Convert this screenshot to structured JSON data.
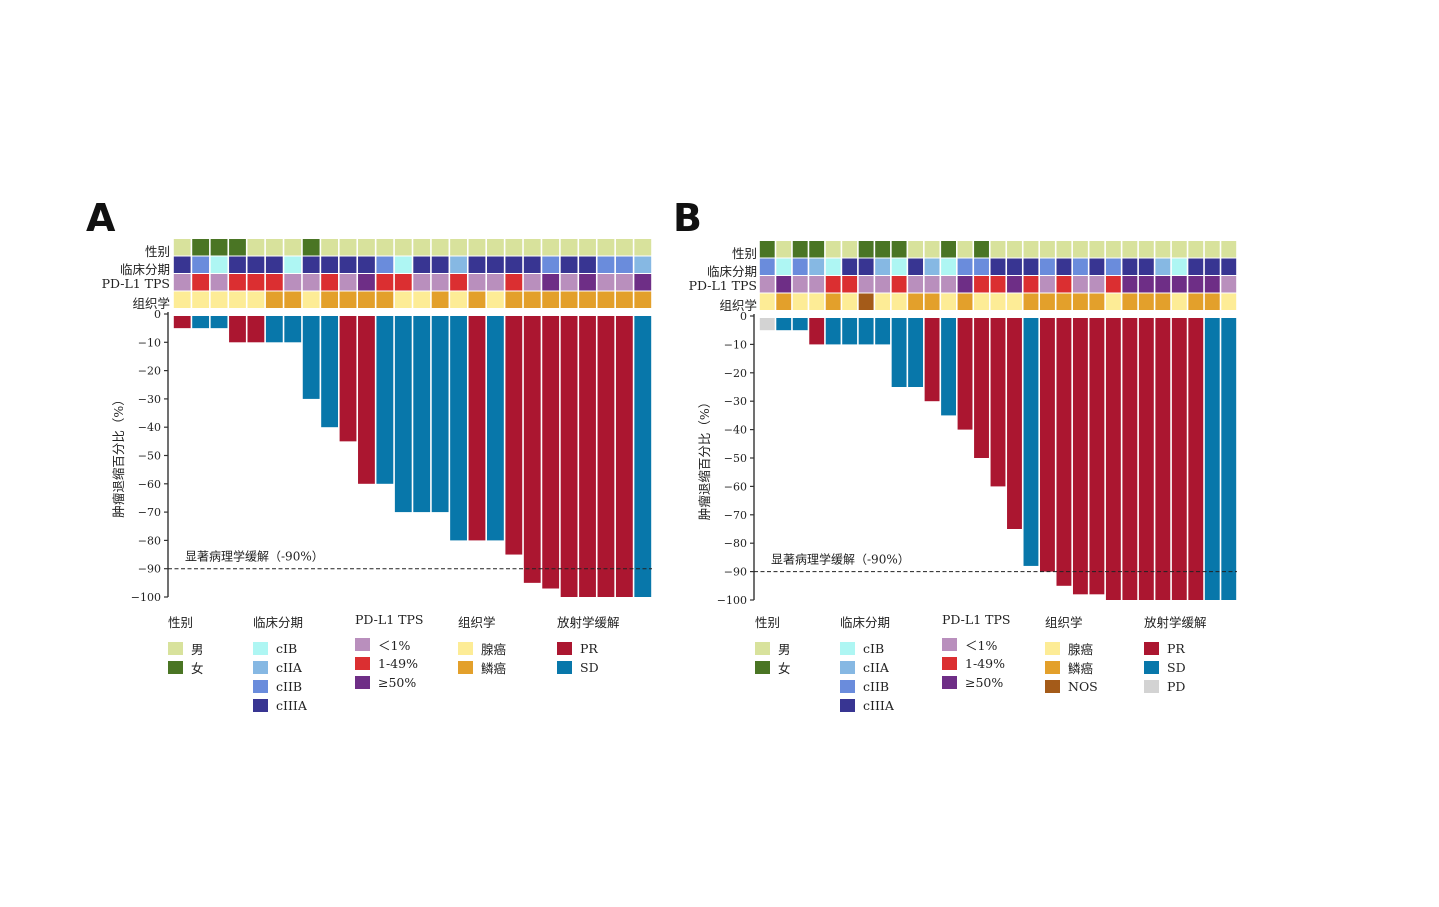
{
  "colors": {
    "sex": {
      "男": "#d8e29c",
      "女": "#4a7524"
    },
    "stage": {
      "cIB": "#aef6f3",
      "cIIA": "#86b8e3",
      "cIIB": "#6a8cdc",
      "cIIIA": "#383592"
    },
    "pdl1": {
      "<1%": "#b98fbd",
      "1-49%": "#db2f31",
      "≥50%": "#6e2e86"
    },
    "histology": {
      "腺癌": "#fdec96",
      "鳞癌": "#e3a02b",
      "NOS": "#a45b19"
    },
    "response": {
      "PR": "#ab1630",
      "SD": "#0877aa",
      "PD": "#d3d3d3"
    }
  },
  "track_labels": [
    "性别",
    "临床分期",
    "PD-L1 TPS",
    "组织学"
  ],
  "legend_titles": [
    "性别",
    "临床分期",
    "PD-L1 TPS",
    "组织学",
    "放射学缓解"
  ],
  "chart_data": [
    {
      "type": "bar",
      "panel": "A",
      "title": "A",
      "ylabel": "肿瘤退缩百分比（%）",
      "ylim": [
        -100,
        0
      ],
      "yticks": [
        0,
        -10,
        -20,
        -30,
        -40,
        -50,
        -60,
        -70,
        -80,
        -90,
        -100
      ],
      "reference_line": {
        "value": -90,
        "label": "显著病理学缓解（-90%）",
        "style": "dashed"
      },
      "values": [
        -5,
        -5,
        -5,
        -10,
        -10,
        -10,
        -10,
        -30,
        -40,
        -45,
        -60,
        -60,
        -70,
        -70,
        -70,
        -80,
        -80,
        -80,
        -85,
        -95,
        -97,
        -100,
        -100,
        -100,
        -100,
        -100
      ],
      "response": [
        "PR",
        "SD",
        "SD",
        "PR",
        "PR",
        "SD",
        "SD",
        "SD",
        "SD",
        "PR",
        "PR",
        "SD",
        "SD",
        "SD",
        "SD",
        "SD",
        "PR",
        "SD",
        "PR",
        "PR",
        "PR",
        "PR",
        "PR",
        "PR",
        "PR",
        "SD"
      ],
      "sex": [
        "男",
        "女",
        "女",
        "女",
        "男",
        "男",
        "男",
        "女",
        "男",
        "男",
        "男",
        "男",
        "男",
        "男",
        "男",
        "男",
        "男",
        "男",
        "男",
        "男",
        "男",
        "男",
        "男",
        "男",
        "男",
        "男"
      ],
      "stage": [
        "cIIIA",
        "cIIB",
        "cIB",
        "cIIIA",
        "cIIIA",
        "cIIIA",
        "cIB",
        "cIIIA",
        "cIIIA",
        "cIIIA",
        "cIIIA",
        "cIIB",
        "cIB",
        "cIIIA",
        "cIIIA",
        "cIIA",
        "cIIIA",
        "cIIIA",
        "cIIIA",
        "cIIIA",
        "cIIB",
        "cIIIA",
        "cIIIA",
        "cIIB",
        "cIIB",
        "cIIA"
      ],
      "pdl1": [
        "<1%",
        "1-49%",
        "<1%",
        "1-49%",
        "1-49%",
        "1-49%",
        "<1%",
        "<1%",
        "1-49%",
        "<1%",
        "≥50%",
        "1-49%",
        "1-49%",
        "<1%",
        "<1%",
        "1-49%",
        "<1%",
        "<1%",
        "1-49%",
        "<1%",
        "≥50%",
        "<1%",
        "≥50%",
        "<1%",
        "<1%",
        "≥50%"
      ],
      "histology": [
        "腺癌",
        "腺癌",
        "腺癌",
        "腺癌",
        "腺癌",
        "鳞癌",
        "鳞癌",
        "腺癌",
        "鳞癌",
        "鳞癌",
        "鳞癌",
        "鳞癌",
        "腺癌",
        "腺癌",
        "鳞癌",
        "腺癌",
        "鳞癌",
        "腺癌",
        "鳞癌",
        "鳞癌",
        "鳞癌",
        "鳞癌",
        "鳞癌",
        "鳞癌",
        "鳞癌",
        "鳞癌"
      ],
      "legend": {
        "sex": [
          "男",
          "女"
        ],
        "stage": [
          "cIB",
          "cIIA",
          "cIIB",
          "cIIIA"
        ],
        "pdl1": [
          "<1%",
          "1-49%",
          "≥50%"
        ],
        "histology": [
          "腺癌",
          "鳞癌"
        ],
        "response": [
          "PR",
          "SD"
        ]
      },
      "legend_placement": "bottom"
    },
    {
      "type": "bar",
      "panel": "B",
      "title": "B",
      "ylabel": "肿瘤退缩百分比（%）",
      "ylim": [
        -100,
        0
      ],
      "yticks": [
        0,
        -10,
        -20,
        -30,
        -40,
        -50,
        -60,
        -70,
        -80,
        -90,
        -100
      ],
      "reference_line": {
        "value": -90,
        "label": "显著病理学缓解（-90%）",
        "style": "dashed"
      },
      "values": [
        -5,
        -5,
        -5,
        -10,
        -10,
        -10,
        -10,
        -10,
        -25,
        -25,
        -30,
        -35,
        -40,
        -50,
        -60,
        -75,
        -88,
        -90,
        -95,
        -98,
        -98,
        -100,
        -100,
        -100,
        -100,
        -100,
        -100,
        -100,
        -100
      ],
      "response": [
        "PD",
        "SD",
        "SD",
        "PR",
        "SD",
        "SD",
        "SD",
        "SD",
        "SD",
        "SD",
        "PR",
        "SD",
        "PR",
        "PR",
        "PR",
        "PR",
        "SD",
        "PR",
        "PR",
        "PR",
        "PR",
        "PR",
        "PR",
        "PR",
        "PR",
        "PR",
        "PR",
        "SD",
        "SD"
      ],
      "sex": [
        "女",
        "男",
        "女",
        "女",
        "男",
        "男",
        "女",
        "女",
        "女",
        "男",
        "男",
        "女",
        "男",
        "女",
        "男",
        "男",
        "男",
        "男",
        "男",
        "男",
        "男",
        "男",
        "男",
        "男",
        "男",
        "男",
        "男",
        "男",
        "男"
      ],
      "stage": [
        "cIIB",
        "cIB",
        "cIIB",
        "cIIA",
        "cIB",
        "cIIIA",
        "cIIIA",
        "cIIA",
        "cIB",
        "cIIIA",
        "cIIA",
        "cIB",
        "cIIB",
        "cIIB",
        "cIIIA",
        "cIIIA",
        "cIIIA",
        "cIIB",
        "cIIIA",
        "cIIB",
        "cIIIA",
        "cIIB",
        "cIIIA",
        "cIIIA",
        "cIIA",
        "cIB",
        "cIIIA",
        "cIIIA",
        "cIIIA"
      ],
      "pdl1": [
        "<1%",
        "≥50%",
        "<1%",
        "<1%",
        "1-49%",
        "1-49%",
        "<1%",
        "<1%",
        "1-49%",
        "<1%",
        "<1%",
        "<1%",
        "≥50%",
        "1-49%",
        "1-49%",
        "≥50%",
        "1-49%",
        "<1%",
        "1-49%",
        "<1%",
        "<1%",
        "1-49%",
        "≥50%",
        "≥50%",
        "≥50%",
        "≥50%",
        "≥50%",
        "≥50%",
        "<1%"
      ],
      "histology": [
        "腺癌",
        "鳞癌",
        "腺癌",
        "腺癌",
        "鳞癌",
        "腺癌",
        "NOS",
        "腺癌",
        "腺癌",
        "鳞癌",
        "鳞癌",
        "腺癌",
        "鳞癌",
        "腺癌",
        "腺癌",
        "腺癌",
        "鳞癌",
        "鳞癌",
        "鳞癌",
        "鳞癌",
        "鳞癌",
        "腺癌",
        "鳞癌",
        "鳞癌",
        "鳞癌",
        "腺癌",
        "鳞癌",
        "鳞癌",
        "腺癌"
      ],
      "legend": {
        "sex": [
          "男",
          "女"
        ],
        "stage": [
          "cIB",
          "cIIA",
          "cIIB",
          "cIIIA"
        ],
        "pdl1": [
          "<1%",
          "1-49%",
          "≥50%"
        ],
        "histology": [
          "腺癌",
          "鳞癌",
          "NOS"
        ],
        "response": [
          "PR",
          "SD",
          "PD"
        ]
      },
      "legend_placement": "bottom"
    }
  ]
}
